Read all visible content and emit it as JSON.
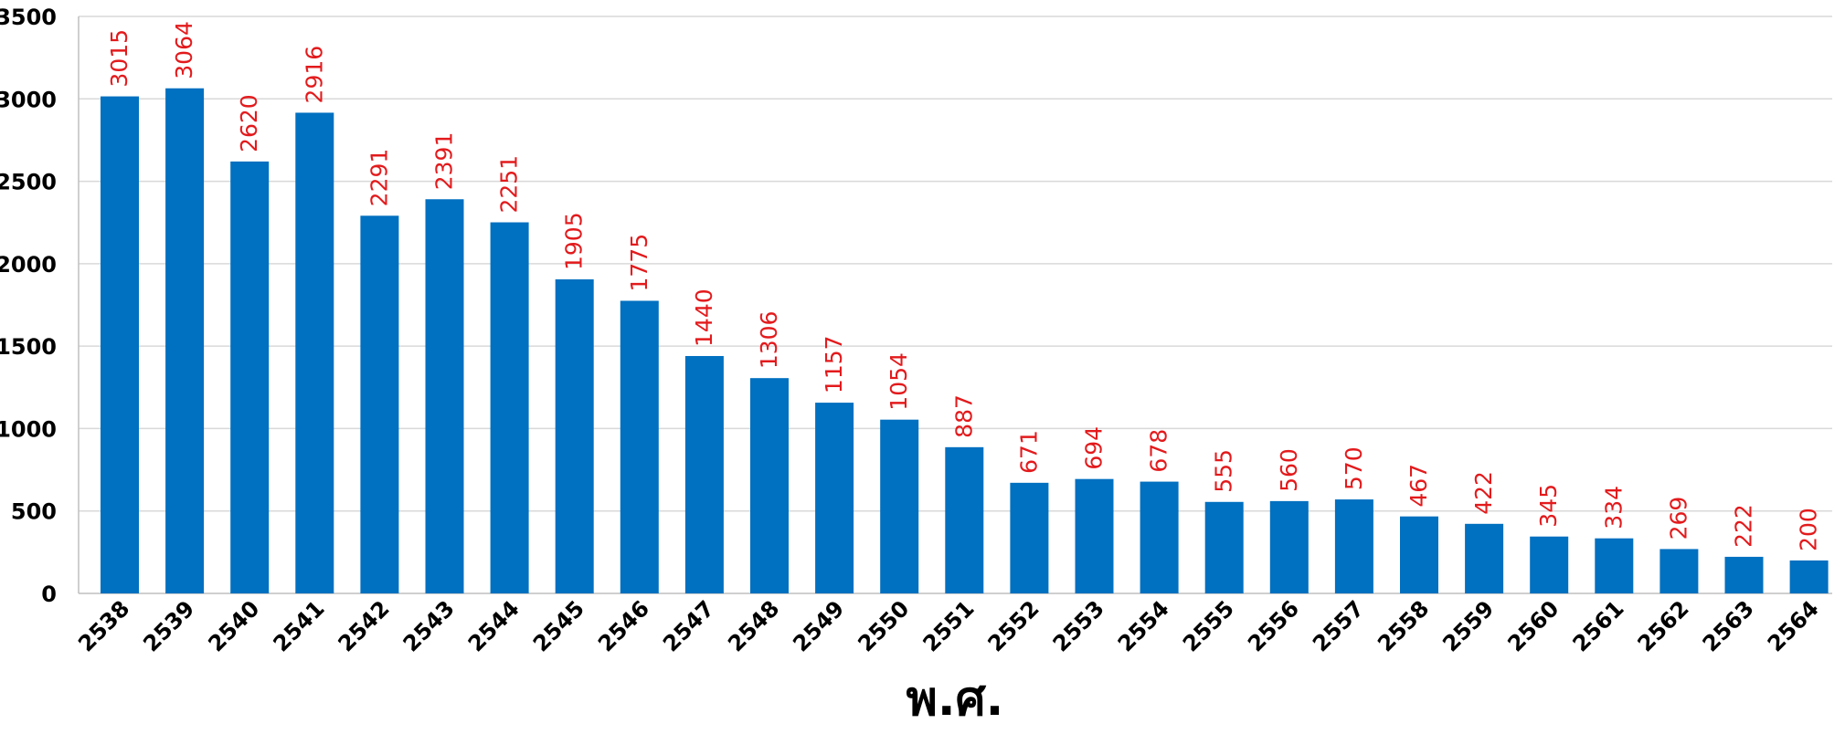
{
  "chart_data": {
    "type": "bar",
    "categories": [
      "2538",
      "2539",
      "2540",
      "2541",
      "2542",
      "2543",
      "2544",
      "2545",
      "2546",
      "2547",
      "2548",
      "2549",
      "2550",
      "2551",
      "2552",
      "2553",
      "2554",
      "2555",
      "2556",
      "2557",
      "2558",
      "2559",
      "2560",
      "2561",
      "2562",
      "2563",
      "2564"
    ],
    "values": [
      3015,
      3064,
      2620,
      2916,
      2291,
      2391,
      2251,
      1905,
      1775,
      1440,
      1306,
      1157,
      1054,
      887,
      671,
      694,
      678,
      555,
      560,
      570,
      467,
      422,
      345,
      334,
      269,
      222,
      200
    ],
    "xlabel": "พ.ศ.",
    "ylabel": "",
    "title": "",
    "ylim": [
      0,
      3500
    ],
    "yticks": [
      0,
      500,
      1000,
      1500,
      2000,
      2500,
      3000,
      3500
    ],
    "grid": true,
    "legend": "none",
    "data_labels": true,
    "colors": {
      "bar": "#0070c0",
      "data_label": "#e31a1c",
      "grid": "#d9d9d9",
      "text": "#000000"
    }
  }
}
